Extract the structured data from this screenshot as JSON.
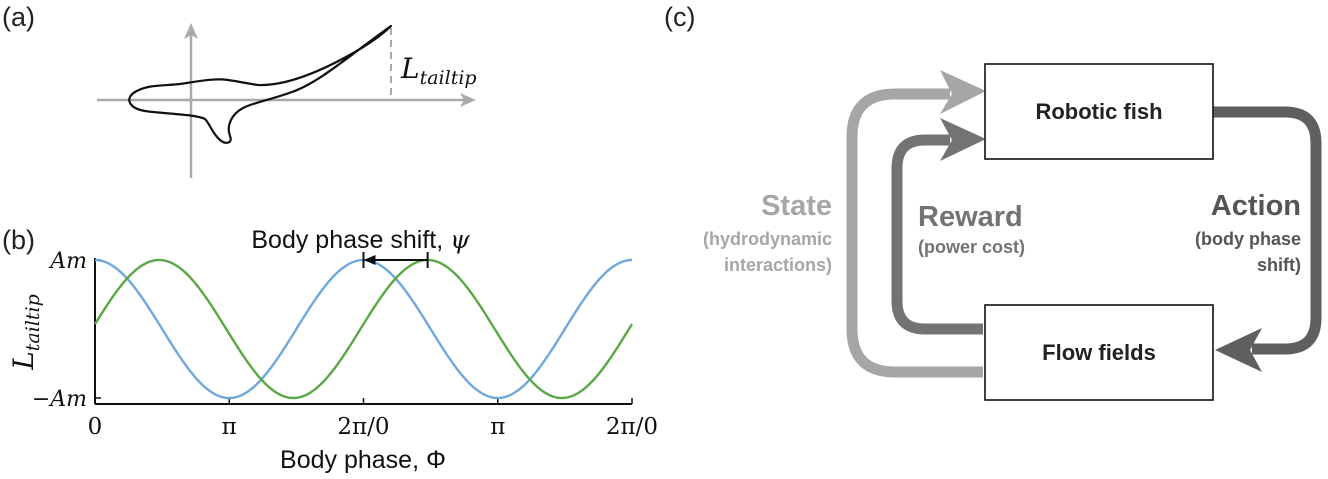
{
  "panels": {
    "a": {
      "label": "(a)",
      "annotation_symbol": "L",
      "annotation_subscript": "tailtip"
    },
    "b": {
      "label": "(b)"
    },
    "c": {
      "label": "(c)"
    }
  },
  "colors": {
    "blue": "#6fa8dc",
    "green": "#5aa845",
    "state_gray": "#a6a6a6",
    "loop_gray": "#737373",
    "dark_gray": "#555555",
    "axis_gray": "#aaaaaa"
  },
  "chart_data": {
    "type": "line",
    "xlabel": "Body phase, Φ",
    "ylabel_symbol": "L",
    "ylabel_subscript": "tailtip",
    "x_tick_values": [
      0,
      3.14159,
      6.28318,
      9.42478,
      12.56637
    ],
    "x_tick_labels": [
      "0",
      "π",
      "2π/0",
      "π",
      "2π/0"
    ],
    "y_tick_values": [
      1,
      -1
    ],
    "y_tick_labels": [
      "Am",
      "−Am"
    ],
    "xlim": [
      0,
      12.56637
    ],
    "ylim": [
      -1,
      1
    ],
    "series": [
      {
        "color": "#6fa8dc",
        "function": "cos(x)",
        "phase_shift": 0
      },
      {
        "color": "#5aa845",
        "function": "cos(x - 1.5)",
        "phase_shift": 1.5
      }
    ],
    "annotation": {
      "text": "Body phase shift, ",
      "symbol": "ψ",
      "x_start": 6.28318,
      "x_end": 7.78318,
      "y": 1
    }
  },
  "diagram": {
    "boxes": {
      "robotic_fish": "Robotic fish",
      "flow_fields": "Flow fields"
    },
    "labels": {
      "state": "State",
      "state_sub_1": "(hydrodynamic",
      "state_sub_2": "interactions)",
      "reward": "Reward",
      "reward_sub": "(power cost)",
      "action": "Action",
      "action_sub_1": "(body phase",
      "action_sub_2": "shift)"
    }
  }
}
